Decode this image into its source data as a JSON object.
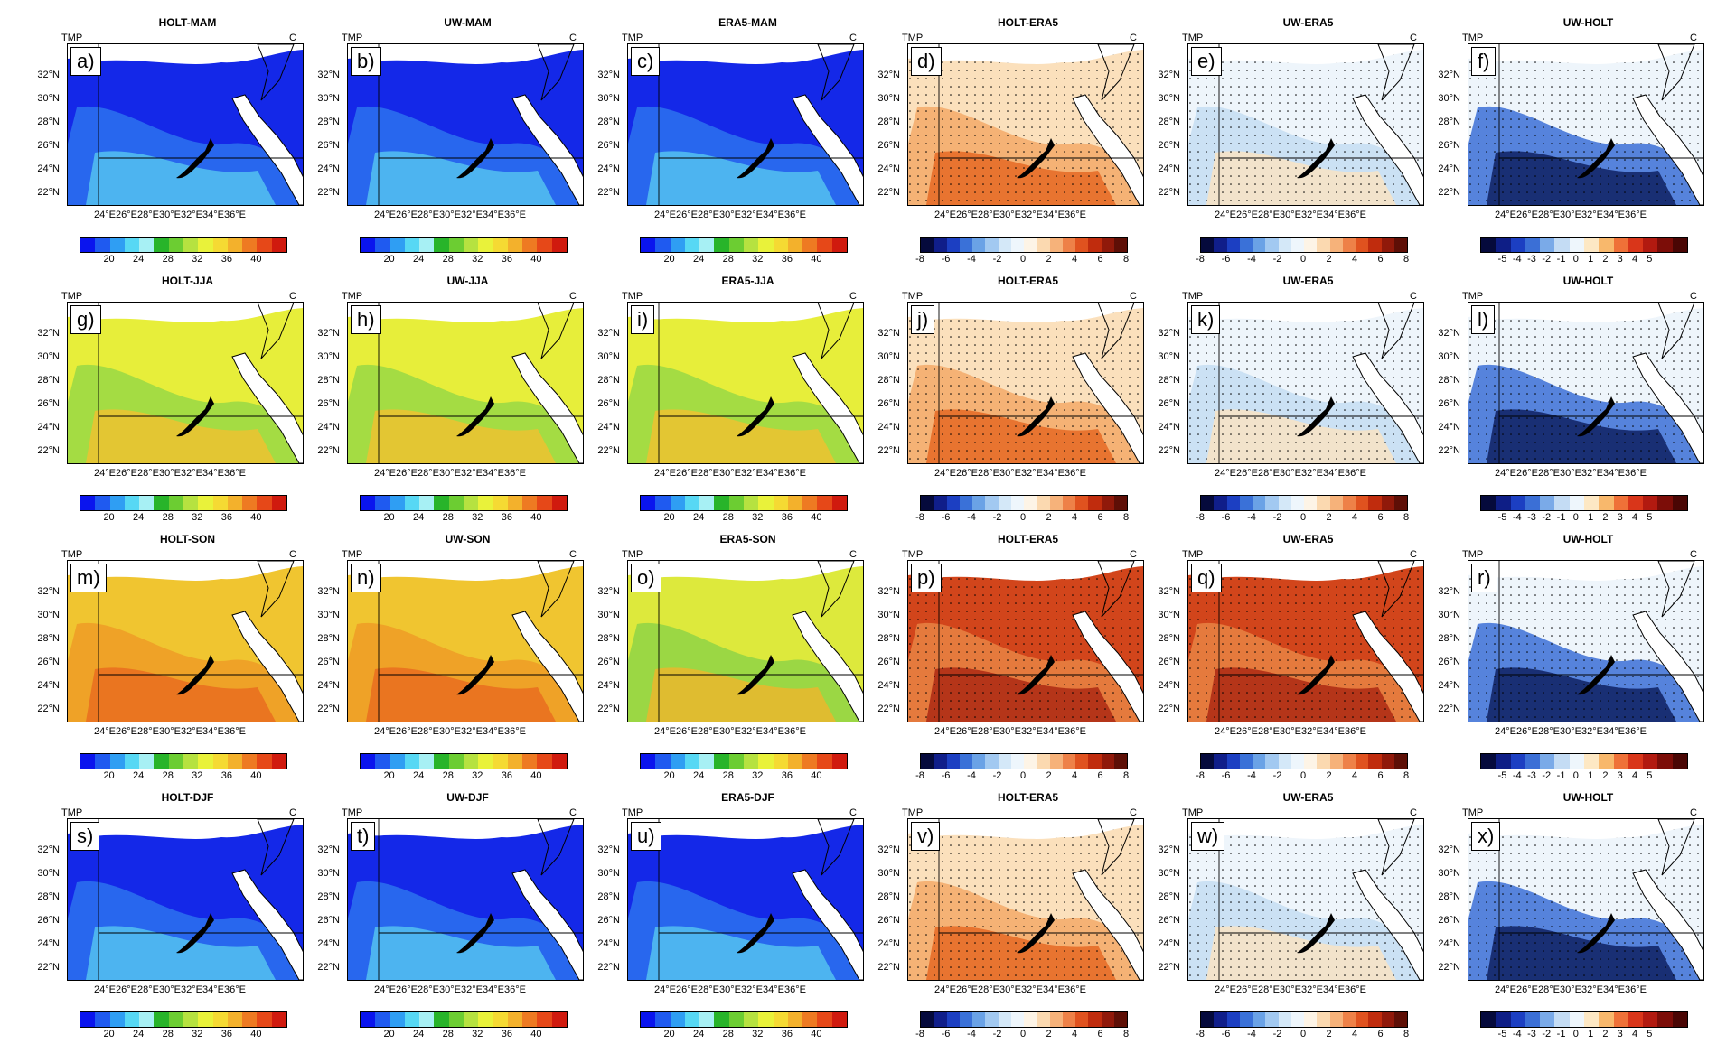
{
  "figure": {
    "var_label": "TMP",
    "unit_label": "C",
    "y_ticks": [
      "32°N",
      "30°N",
      "28°N",
      "26°N",
      "24°N",
      "22°N"
    ],
    "x_ticks": [
      "24°E",
      "26°E",
      "28°E",
      "30°E",
      "32°E",
      "34°E",
      "36°E"
    ],
    "colorbars": {
      "abs": {
        "labels": [
          "20",
          "24",
          "28",
          "32",
          "36",
          "40"
        ],
        "colors": [
          "#0a14ee",
          "#1f5af0",
          "#2f9ef3",
          "#57d8f4",
          "#a7f0f4",
          "#28b42a",
          "#6ccd32",
          "#b6e240",
          "#e9f23a",
          "#f5da33",
          "#f3b12c",
          "#ee7a22",
          "#e64818",
          "#d01a0e"
        ]
      },
      "diff8": {
        "labels": [
          "-8",
          "-6",
          "-4",
          "-2",
          "0",
          "2",
          "4",
          "6",
          "8"
        ],
        "colors": [
          "#050a3c",
          "#101e8a",
          "#1c3fc2",
          "#3a71d8",
          "#6aa2e6",
          "#a2c9f1",
          "#d4e8f8",
          "#eef6fc",
          "#fdf4e6",
          "#fbd9b0",
          "#f6b27a",
          "#ee8148",
          "#e0521f",
          "#c02c0d",
          "#90190a",
          "#5e0f06"
        ]
      },
      "diff5": {
        "labels": [
          "-5",
          "-4",
          "-3",
          "-2",
          "-1",
          "0",
          "1",
          "2",
          "3",
          "4",
          "5"
        ],
        "colors": [
          "#050a3c",
          "#0e1e86",
          "#1c3fc2",
          "#3b6fd6",
          "#7aaae8",
          "#c4dcf4",
          "#eef6fc",
          "#fde8c4",
          "#f8b86c",
          "#ef7138",
          "#d9361a",
          "#b21a10",
          "#7c0d08",
          "#4a0604"
        ]
      }
    },
    "panels": [
      {
        "id": "a",
        "label": "a)",
        "title": "HOLT-MAM",
        "kind": "abs",
        "season": "MAM"
      },
      {
        "id": "b",
        "label": "b)",
        "title": "UW-MAM",
        "kind": "abs",
        "season": "MAM"
      },
      {
        "id": "c",
        "label": "c)",
        "title": "ERA5-MAM",
        "kind": "abs",
        "season": "MAM"
      },
      {
        "id": "d",
        "label": "d)",
        "title": "HOLT-ERA5",
        "kind": "diff8",
        "season": "MAM"
      },
      {
        "id": "e",
        "label": "e)",
        "title": "UW-ERA5",
        "kind": "diff8",
        "season": "MAM"
      },
      {
        "id": "f",
        "label": "f)",
        "title": "UW-HOLT",
        "kind": "diff5",
        "season": "MAM"
      },
      {
        "id": "g",
        "label": "g)",
        "title": "HOLT-JJA",
        "kind": "abs",
        "season": "JJA"
      },
      {
        "id": "h",
        "label": "h)",
        "title": "UW-JJA",
        "kind": "abs",
        "season": "JJA"
      },
      {
        "id": "i",
        "label": "i)",
        "title": "ERA5-JJA",
        "kind": "abs",
        "season": "JJA"
      },
      {
        "id": "j",
        "label": "j)",
        "title": "HOLT-ERA5",
        "kind": "diff8",
        "season": "JJA"
      },
      {
        "id": "k",
        "label": "k)",
        "title": "UW-ERA5",
        "kind": "diff8",
        "season": "JJA"
      },
      {
        "id": "l",
        "label": "l)",
        "title": "UW-HOLT",
        "kind": "diff5",
        "season": "JJA"
      },
      {
        "id": "m",
        "label": "m)",
        "title": "HOLT-SON",
        "kind": "abs",
        "season": "SON"
      },
      {
        "id": "n",
        "label": "n)",
        "title": "UW-SON",
        "kind": "abs",
        "season": "SON"
      },
      {
        "id": "o",
        "label": "o)",
        "title": "ERA5-SON",
        "kind": "abs",
        "season": "SON"
      },
      {
        "id": "p",
        "label": "p)",
        "title": "HOLT-ERA5",
        "kind": "diff8",
        "season": "SON"
      },
      {
        "id": "q",
        "label": "q)",
        "title": "UW-ERA5",
        "kind": "diff8",
        "season": "SON"
      },
      {
        "id": "r",
        "label": "r)",
        "title": "UW-HOLT",
        "kind": "diff5",
        "season": "SON"
      },
      {
        "id": "s",
        "label": "s)",
        "title": "HOLT-DJF",
        "kind": "abs",
        "season": "DJF"
      },
      {
        "id": "t",
        "label": "t)",
        "title": "UW-DJF",
        "kind": "abs",
        "season": "DJF"
      },
      {
        "id": "u",
        "label": "u)",
        "title": "ERA5-DJF",
        "kind": "abs",
        "season": "DJF"
      },
      {
        "id": "v",
        "label": "v)",
        "title": "HOLT-ERA5",
        "kind": "diff8",
        "season": "DJF"
      },
      {
        "id": "w",
        "label": "w)",
        "title": "UW-ERA5",
        "kind": "diff8",
        "season": "DJF"
      },
      {
        "id": "x",
        "label": "x)",
        "title": "UW-HOLT",
        "kind": "diff5",
        "season": "DJF"
      }
    ]
  }
}
